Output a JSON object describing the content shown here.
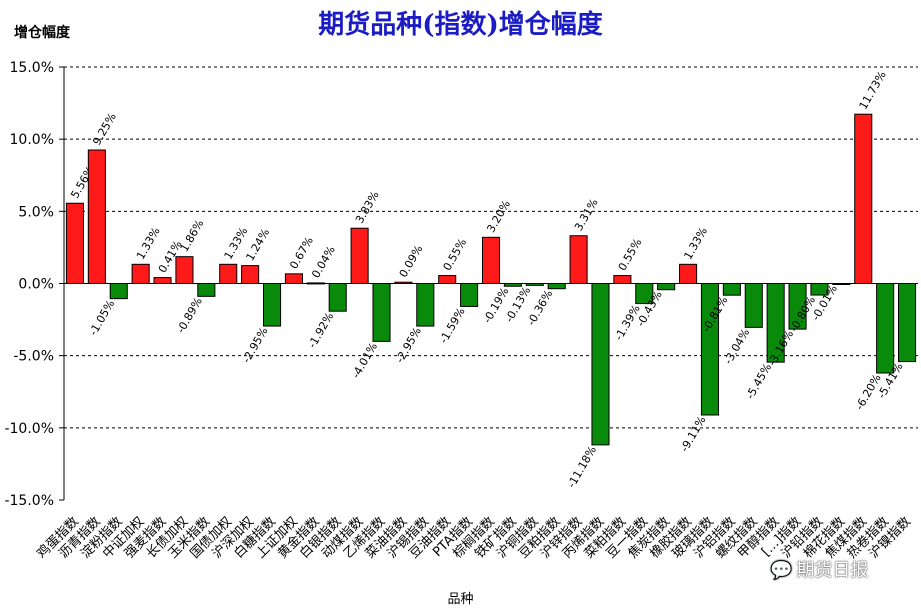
{
  "chart_data": {
    "type": "bar",
    "title": "期货品种(指数)增仓幅度",
    "ylabel": "增仓幅度",
    "xlabel": "品种",
    "ylim": [
      -15,
      15
    ],
    "y_ticks": [
      "15.0%",
      "10.0%",
      "5.0%",
      "0.0%",
      "-5.0%",
      "-10.0%",
      "-15.0%"
    ],
    "y_tick_values": [
      15,
      10,
      5,
      0,
      -5,
      -10,
      -15
    ],
    "grid": "horizontal dashed",
    "colors": {
      "positive": "#ff1a1a",
      "negative": "#0a8a0a",
      "title": "#1c1cc4"
    },
    "categories": [
      "鸡蛋指数",
      "沥青指数",
      "淀粉指数",
      "中证加权",
      "强麦指数",
      "长债加权",
      "玉米指数",
      "国债加权",
      "沪深加权",
      "白糖指数",
      "上证加权",
      "黄金指数",
      "白银指数",
      "动煤指数",
      "乙烯指数",
      "菜油指数",
      "沪锡指数",
      "豆油指数",
      "PTA指数",
      "棕榈指数",
      "铁矿指数",
      "沪铜指数",
      "豆粕指数",
      "沪锌指数",
      "丙烯指数",
      "菜粕指数",
      "豆一指数",
      "焦炭指数",
      "橡胶指数",
      "玻璃指数",
      "沪铝指数",
      "螺纹指数",
      "甲醇指数",
      "[…]指数",
      "沪铅指数",
      "棉花指数",
      "焦煤指数",
      "热卷指数",
      "沪镍指数"
    ],
    "values": [
      5.56,
      9.25,
      -1.05,
      1.33,
      0.41,
      1.86,
      -0.89,
      1.33,
      1.24,
      -2.95,
      0.67,
      0.04,
      -1.92,
      3.83,
      -4.01,
      0.09,
      -2.95,
      0.55,
      -1.59,
      3.2,
      -0.19,
      -0.13,
      -0.36,
      3.31,
      -11.18,
      0.55,
      -1.39,
      -0.43,
      1.33,
      -9.11,
      -0.81,
      -3.04,
      -5.45,
      -3.16,
      -0.8,
      -0.01,
      11.73,
      -6.2,
      -5.41
    ],
    "data_labels": [
      "5.56%",
      "9.25%",
      "-1.05%",
      "1.33%",
      "0.41%",
      "1.86%",
      "-0.89%",
      "1.33%",
      "1.24%",
      "-2.95%",
      "0.67%",
      "0.04%",
      "-1.92%",
      "3.83%",
      "-4.01%",
      "0.09%",
      "-2.95%",
      "0.55%",
      "-1.59%",
      "3.20%",
      "-0.19%",
      "-0.13%",
      "-0.36%",
      "3.31%",
      "-11.18%",
      "0.55%",
      "-1.39%",
      "-0.43%",
      "1.33%",
      "-9.11%",
      "-0.81%",
      "-3.04%",
      "-5.45%",
      "-3.16%",
      "-0.80%",
      "-0.01%",
      "11.73%",
      "-6.20%",
      "-5.41%"
    ]
  },
  "watermark": {
    "text": "期货日报",
    "icon": "chat-bubble-icon"
  }
}
